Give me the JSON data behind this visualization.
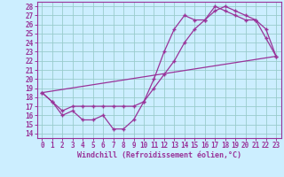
{
  "xlabel": "Windchill (Refroidissement éolien,°C)",
  "bg_color": "#cceeff",
  "grid_color": "#99cccc",
  "line_color": "#993399",
  "spine_color": "#993399",
  "xlim": [
    -0.5,
    23.5
  ],
  "ylim": [
    13.5,
    28.5
  ],
  "xticks": [
    0,
    1,
    2,
    3,
    4,
    5,
    6,
    7,
    8,
    9,
    10,
    11,
    12,
    13,
    14,
    15,
    16,
    17,
    18,
    19,
    20,
    21,
    22,
    23
  ],
  "yticks": [
    14,
    15,
    16,
    17,
    18,
    19,
    20,
    21,
    22,
    23,
    24,
    25,
    26,
    27,
    28
  ],
  "line1_x": [
    0,
    1,
    2,
    3,
    4,
    5,
    6,
    7,
    8,
    9,
    10,
    11,
    12,
    13,
    14,
    15,
    16,
    17,
    18,
    19,
    20,
    21,
    22,
    23
  ],
  "line1_y": [
    18.5,
    17.5,
    16.0,
    16.5,
    15.5,
    15.5,
    16.0,
    14.5,
    14.5,
    15.5,
    17.5,
    20.0,
    23.0,
    25.5,
    27.0,
    26.5,
    26.5,
    28.0,
    27.5,
    27.0,
    26.5,
    26.5,
    24.5,
    22.5
  ],
  "line2_x": [
    0,
    1,
    2,
    3,
    4,
    5,
    6,
    7,
    8,
    9,
    10,
    11,
    12,
    13,
    14,
    15,
    16,
    17,
    18,
    19,
    20,
    21,
    22,
    23
  ],
  "line2_y": [
    18.5,
    17.5,
    16.5,
    17.0,
    17.0,
    17.0,
    17.0,
    17.0,
    17.0,
    17.0,
    17.5,
    19.0,
    20.5,
    22.0,
    24.0,
    25.5,
    26.5,
    27.5,
    28.0,
    27.5,
    27.0,
    26.5,
    25.5,
    22.5
  ],
  "line3_x": [
    0,
    23
  ],
  "line3_y": [
    18.5,
    22.5
  ],
  "tick_fontsize": 5.5,
  "xlabel_fontsize": 6.0
}
